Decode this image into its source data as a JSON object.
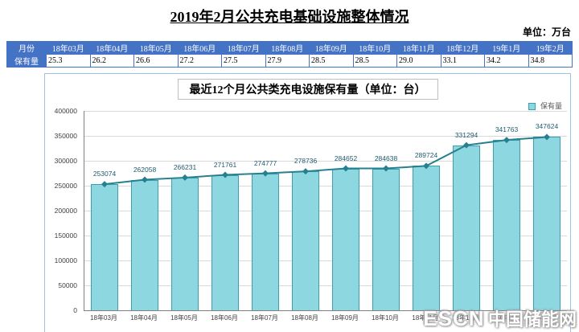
{
  "page": {
    "title": "2019年2月公共充电基础设施整体情况",
    "unit_label": "单位：万台"
  },
  "colors": {
    "table_header_bg": "#4472c4",
    "table_border": "#4472c4",
    "chart_border": "#9cc2e5",
    "bar_fill": "#8dd7e1",
    "bar_border": "#3a9fb0",
    "line": "#27808f",
    "value_label": "#1f5a6e",
    "grid": "#d9d9d9",
    "axis": "#808080"
  },
  "table": {
    "corner_label": "月份",
    "row_label": "保有量",
    "months": [
      "18年03月",
      "18年04月",
      "18年05月",
      "18年06月",
      "18年07月",
      "18年08月",
      "18年09月",
      "18年10月",
      "18年11月",
      "18年12月",
      "19年1月",
      "19年2月"
    ],
    "values": [
      "25.3",
      "26.2",
      "26.6",
      "27.2",
      "27.5",
      "27.9",
      "28.5",
      "28.5",
      "29.0",
      "33.1",
      "34.2",
      "34.8"
    ]
  },
  "chart_data": {
    "type": "bar",
    "title": "最近12个月公共类充电设施保有量（单位：台）",
    "legend": "保有量",
    "legend_position": "top-right",
    "grid": true,
    "overlay": "line-with-diamond-markers",
    "categories": [
      "18年03月",
      "18年04月",
      "18年05月",
      "18年06月",
      "18年07月",
      "18年08月",
      "18年09月",
      "18年10月",
      "18年11月",
      "18年12月",
      "19年1月",
      "19年2月"
    ],
    "values": [
      253074,
      262058,
      266231,
      271761,
      274777,
      278736,
      284652,
      284638,
      289724,
      331294,
      341763,
      347624
    ],
    "xlabel": "",
    "ylabel": "",
    "ylim": [
      0,
      400000
    ],
    "ytick_step": 50000
  },
  "watermark": {
    "escn": "ESCN",
    "site": "中国储能网"
  }
}
